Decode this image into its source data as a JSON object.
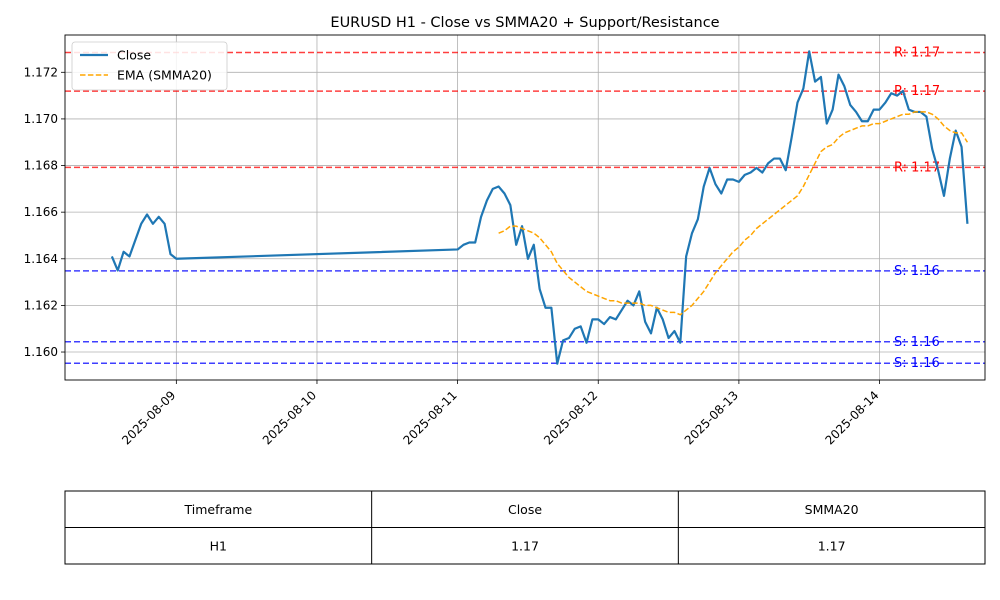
{
  "chart_data": {
    "type": "line",
    "title": "EURUSD H1 - Close vs SMMA20 + Support/Resistance",
    "xlabel": "",
    "ylabel": "",
    "grid": true,
    "legend_position": "upper-left",
    "xlim": [
      "2025-08-08 05:00",
      "2025-08-14 18:00"
    ],
    "ylim": [
      1.1588,
      1.1736
    ],
    "x_tick_labels": [
      "2025-08-09",
      "2025-08-10",
      "2025-08-11",
      "2025-08-12",
      "2025-08-13",
      "2025-08-14"
    ],
    "y_tick_labels": [
      "1.160",
      "1.162",
      "1.164",
      "1.166",
      "1.168",
      "1.170",
      "1.172"
    ],
    "series": [
      {
        "name": "Close",
        "color": "#1f77b4",
        "style": "solid",
        "points": [
          [
            "2025-08-08 13:00",
            1.1641
          ],
          [
            "2025-08-08 14:00",
            1.1635
          ],
          [
            "2025-08-08 15:00",
            1.1643
          ],
          [
            "2025-08-08 16:00",
            1.1641
          ],
          [
            "2025-08-08 17:00",
            1.1648
          ],
          [
            "2025-08-08 18:00",
            1.1655
          ],
          [
            "2025-08-08 19:00",
            1.1659
          ],
          [
            "2025-08-08 20:00",
            1.1655
          ],
          [
            "2025-08-08 21:00",
            1.1658
          ],
          [
            "2025-08-08 22:00",
            1.1655
          ],
          [
            "2025-08-08 23:00",
            1.1642
          ],
          [
            "2025-08-09 00:00",
            1.164
          ],
          [
            "2025-08-11 00:00",
            1.1644
          ],
          [
            "2025-08-11 01:00",
            1.1646
          ],
          [
            "2025-08-11 02:00",
            1.1647
          ],
          [
            "2025-08-11 03:00",
            1.1647
          ],
          [
            "2025-08-11 04:00",
            1.1658
          ],
          [
            "2025-08-11 05:00",
            1.1665
          ],
          [
            "2025-08-11 06:00",
            1.167
          ],
          [
            "2025-08-11 07:00",
            1.1671
          ],
          [
            "2025-08-11 08:00",
            1.1668
          ],
          [
            "2025-08-11 09:00",
            1.1663
          ],
          [
            "2025-08-11 10:00",
            1.1646
          ],
          [
            "2025-08-11 11:00",
            1.1654
          ],
          [
            "2025-08-11 12:00",
            1.164
          ],
          [
            "2025-08-11 13:00",
            1.1646
          ],
          [
            "2025-08-11 14:00",
            1.1627
          ],
          [
            "2025-08-11 15:00",
            1.1619
          ],
          [
            "2025-08-11 16:00",
            1.1619
          ],
          [
            "2025-08-11 17:00",
            1.1595
          ],
          [
            "2025-08-11 18:00",
            1.1605
          ],
          [
            "2025-08-11 19:00",
            1.1606
          ],
          [
            "2025-08-11 20:00",
            1.161
          ],
          [
            "2025-08-11 21:00",
            1.1611
          ],
          [
            "2025-08-11 22:00",
            1.1604
          ],
          [
            "2025-08-11 23:00",
            1.1614
          ],
          [
            "2025-08-12 00:00",
            1.1614
          ],
          [
            "2025-08-12 01:00",
            1.1612
          ],
          [
            "2025-08-12 02:00",
            1.1615
          ],
          [
            "2025-08-12 03:00",
            1.1614
          ],
          [
            "2025-08-12 04:00",
            1.1618
          ],
          [
            "2025-08-12 05:00",
            1.1622
          ],
          [
            "2025-08-12 06:00",
            1.162
          ],
          [
            "2025-08-12 07:00",
            1.1626
          ],
          [
            "2025-08-12 08:00",
            1.1613
          ],
          [
            "2025-08-12 09:00",
            1.1608
          ],
          [
            "2025-08-12 10:00",
            1.1619
          ],
          [
            "2025-08-12 11:00",
            1.1614
          ],
          [
            "2025-08-12 12:00",
            1.1606
          ],
          [
            "2025-08-12 13:00",
            1.1609
          ],
          [
            "2025-08-12 14:00",
            1.1604
          ],
          [
            "2025-08-12 15:00",
            1.1641
          ],
          [
            "2025-08-12 16:00",
            1.1651
          ],
          [
            "2025-08-12 17:00",
            1.1657
          ],
          [
            "2025-08-12 18:00",
            1.1671
          ],
          [
            "2025-08-12 19:00",
            1.1679
          ],
          [
            "2025-08-12 20:00",
            1.1672
          ],
          [
            "2025-08-12 21:00",
            1.1668
          ],
          [
            "2025-08-12 22:00",
            1.1674
          ],
          [
            "2025-08-12 23:00",
            1.1674
          ],
          [
            "2025-08-13 00:00",
            1.1673
          ],
          [
            "2025-08-13 01:00",
            1.1676
          ],
          [
            "2025-08-13 02:00",
            1.1677
          ],
          [
            "2025-08-13 03:00",
            1.1679
          ],
          [
            "2025-08-13 04:00",
            1.1677
          ],
          [
            "2025-08-13 05:00",
            1.1681
          ],
          [
            "2025-08-13 06:00",
            1.1683
          ],
          [
            "2025-08-13 07:00",
            1.1683
          ],
          [
            "2025-08-13 08:00",
            1.1678
          ],
          [
            "2025-08-13 09:00",
            1.1692
          ],
          [
            "2025-08-13 10:00",
            1.1707
          ],
          [
            "2025-08-13 11:00",
            1.1713
          ],
          [
            "2025-08-13 12:00",
            1.1729
          ],
          [
            "2025-08-13 13:00",
            1.1716
          ],
          [
            "2025-08-13 14:00",
            1.1718
          ],
          [
            "2025-08-13 15:00",
            1.1698
          ],
          [
            "2025-08-13 16:00",
            1.1704
          ],
          [
            "2025-08-13 17:00",
            1.1719
          ],
          [
            "2025-08-13 18:00",
            1.1714
          ],
          [
            "2025-08-13 19:00",
            1.1706
          ],
          [
            "2025-08-13 20:00",
            1.1703
          ],
          [
            "2025-08-13 21:00",
            1.1699
          ],
          [
            "2025-08-13 22:00",
            1.1699
          ],
          [
            "2025-08-13 23:00",
            1.1704
          ],
          [
            "2025-08-14 00:00",
            1.1704
          ],
          [
            "2025-08-14 01:00",
            1.1707
          ],
          [
            "2025-08-14 02:00",
            1.1711
          ],
          [
            "2025-08-14 03:00",
            1.171
          ],
          [
            "2025-08-14 04:00",
            1.1712
          ],
          [
            "2025-08-14 05:00",
            1.1704
          ],
          [
            "2025-08-14 06:00",
            1.1703
          ],
          [
            "2025-08-14 07:00",
            1.1703
          ],
          [
            "2025-08-14 08:00",
            1.1701
          ],
          [
            "2025-08-14 09:00",
            1.1687
          ],
          [
            "2025-08-14 10:00",
            1.1678
          ],
          [
            "2025-08-14 11:00",
            1.1667
          ],
          [
            "2025-08-14 12:00",
            1.1683
          ],
          [
            "2025-08-14 13:00",
            1.1695
          ],
          [
            "2025-08-14 14:00",
            1.1688
          ],
          [
            "2025-08-14 15:00",
            1.1655
          ]
        ]
      },
      {
        "name": "EMA (SMMA20)",
        "color": "#ffa500",
        "style": "dashed",
        "points": [
          [
            "2025-08-11 07:00",
            1.1651
          ],
          [
            "2025-08-11 08:00",
            1.1652
          ],
          [
            "2025-08-11 09:00",
            1.1654
          ],
          [
            "2025-08-11 10:00",
            1.1654
          ],
          [
            "2025-08-11 11:00",
            1.1653
          ],
          [
            "2025-08-11 12:00",
            1.1652
          ],
          [
            "2025-08-11 13:00",
            1.1651
          ],
          [
            "2025-08-11 14:00",
            1.1649
          ],
          [
            "2025-08-11 15:00",
            1.1646
          ],
          [
            "2025-08-11 16:00",
            1.1643
          ],
          [
            "2025-08-11 17:00",
            1.1638
          ],
          [
            "2025-08-11 18:00",
            1.1635
          ],
          [
            "2025-08-11 19:00",
            1.1632
          ],
          [
            "2025-08-11 20:00",
            1.163
          ],
          [
            "2025-08-11 21:00",
            1.1628
          ],
          [
            "2025-08-11 22:00",
            1.1626
          ],
          [
            "2025-08-11 23:00",
            1.1625
          ],
          [
            "2025-08-12 00:00",
            1.1624
          ],
          [
            "2025-08-12 01:00",
            1.1623
          ],
          [
            "2025-08-12 02:00",
            1.1622
          ],
          [
            "2025-08-12 03:00",
            1.1622
          ],
          [
            "2025-08-12 04:00",
            1.1621
          ],
          [
            "2025-08-12 05:00",
            1.1621
          ],
          [
            "2025-08-12 06:00",
            1.1621
          ],
          [
            "2025-08-12 07:00",
            1.1621
          ],
          [
            "2025-08-12 08:00",
            1.162
          ],
          [
            "2025-08-12 09:00",
            1.162
          ],
          [
            "2025-08-12 10:00",
            1.1619
          ],
          [
            "2025-08-12 11:00",
            1.1618
          ],
          [
            "2025-08-12 12:00",
            1.1617
          ],
          [
            "2025-08-12 13:00",
            1.1617
          ],
          [
            "2025-08-12 14:00",
            1.1616
          ],
          [
            "2025-08-12 15:00",
            1.1618
          ],
          [
            "2025-08-12 16:00",
            1.162
          ],
          [
            "2025-08-12 17:00",
            1.1623
          ],
          [
            "2025-08-12 18:00",
            1.1626
          ],
          [
            "2025-08-12 19:00",
            1.163
          ],
          [
            "2025-08-12 20:00",
            1.1634
          ],
          [
            "2025-08-12 21:00",
            1.1637
          ],
          [
            "2025-08-12 22:00",
            1.164
          ],
          [
            "2025-08-12 23:00",
            1.1643
          ],
          [
            "2025-08-13 00:00",
            1.1645
          ],
          [
            "2025-08-13 01:00",
            1.1648
          ],
          [
            "2025-08-13 02:00",
            1.165
          ],
          [
            "2025-08-13 03:00",
            1.1653
          ],
          [
            "2025-08-13 04:00",
            1.1655
          ],
          [
            "2025-08-13 05:00",
            1.1657
          ],
          [
            "2025-08-13 06:00",
            1.1659
          ],
          [
            "2025-08-13 07:00",
            1.1661
          ],
          [
            "2025-08-13 08:00",
            1.1663
          ],
          [
            "2025-08-13 09:00",
            1.1665
          ],
          [
            "2025-08-13 10:00",
            1.1667
          ],
          [
            "2025-08-13 11:00",
            1.1671
          ],
          [
            "2025-08-13 12:00",
            1.1676
          ],
          [
            "2025-08-13 13:00",
            1.1681
          ],
          [
            "2025-08-13 14:00",
            1.1686
          ],
          [
            "2025-08-13 15:00",
            1.1688
          ],
          [
            "2025-08-13 16:00",
            1.1689
          ],
          [
            "2025-08-13 17:00",
            1.1692
          ],
          [
            "2025-08-13 18:00",
            1.1694
          ],
          [
            "2025-08-13 19:00",
            1.1695
          ],
          [
            "2025-08-13 20:00",
            1.1696
          ],
          [
            "2025-08-13 21:00",
            1.1697
          ],
          [
            "2025-08-13 22:00",
            1.1697
          ],
          [
            "2025-08-13 23:00",
            1.1698
          ],
          [
            "2025-08-14 00:00",
            1.1698
          ],
          [
            "2025-08-14 01:00",
            1.1699
          ],
          [
            "2025-08-14 02:00",
            1.17
          ],
          [
            "2025-08-14 03:00",
            1.1701
          ],
          [
            "2025-08-14 04:00",
            1.1702
          ],
          [
            "2025-08-14 05:00",
            1.1702
          ],
          [
            "2025-08-14 06:00",
            1.1703
          ],
          [
            "2025-08-14 07:00",
            1.1703
          ],
          [
            "2025-08-14 08:00",
            1.1703
          ],
          [
            "2025-08-14 09:00",
            1.1702
          ],
          [
            "2025-08-14 10:00",
            1.17
          ],
          [
            "2025-08-14 11:00",
            1.1697
          ],
          [
            "2025-08-14 12:00",
            1.1695
          ],
          [
            "2025-08-14 13:00",
            1.1694
          ],
          [
            "2025-08-14 14:00",
            1.1694
          ],
          [
            "2025-08-14 15:00",
            1.169
          ]
        ]
      }
    ],
    "levels": [
      {
        "kind": "resistance",
        "value": 1.17285,
        "label": "R: 1.17",
        "color": "#ff0000"
      },
      {
        "kind": "resistance",
        "value": 1.17119,
        "label": "R: 1.17",
        "color": "#ff0000"
      },
      {
        "kind": "resistance",
        "value": 1.16792,
        "label": "R: 1.17",
        "color": "#ff0000"
      },
      {
        "kind": "support",
        "value": 1.16348,
        "label": "S: 1.16",
        "color": "#0000ff"
      },
      {
        "kind": "support",
        "value": 1.16044,
        "label": "S: 1.16",
        "color": "#0000ff"
      },
      {
        "kind": "support",
        "value": 1.15952,
        "label": "S: 1.16",
        "color": "#0000ff"
      }
    ]
  },
  "table": {
    "headers": [
      "Timeframe",
      "Close",
      "SMMA20"
    ],
    "rows": [
      [
        "H1",
        "1.17",
        "1.17"
      ]
    ]
  }
}
